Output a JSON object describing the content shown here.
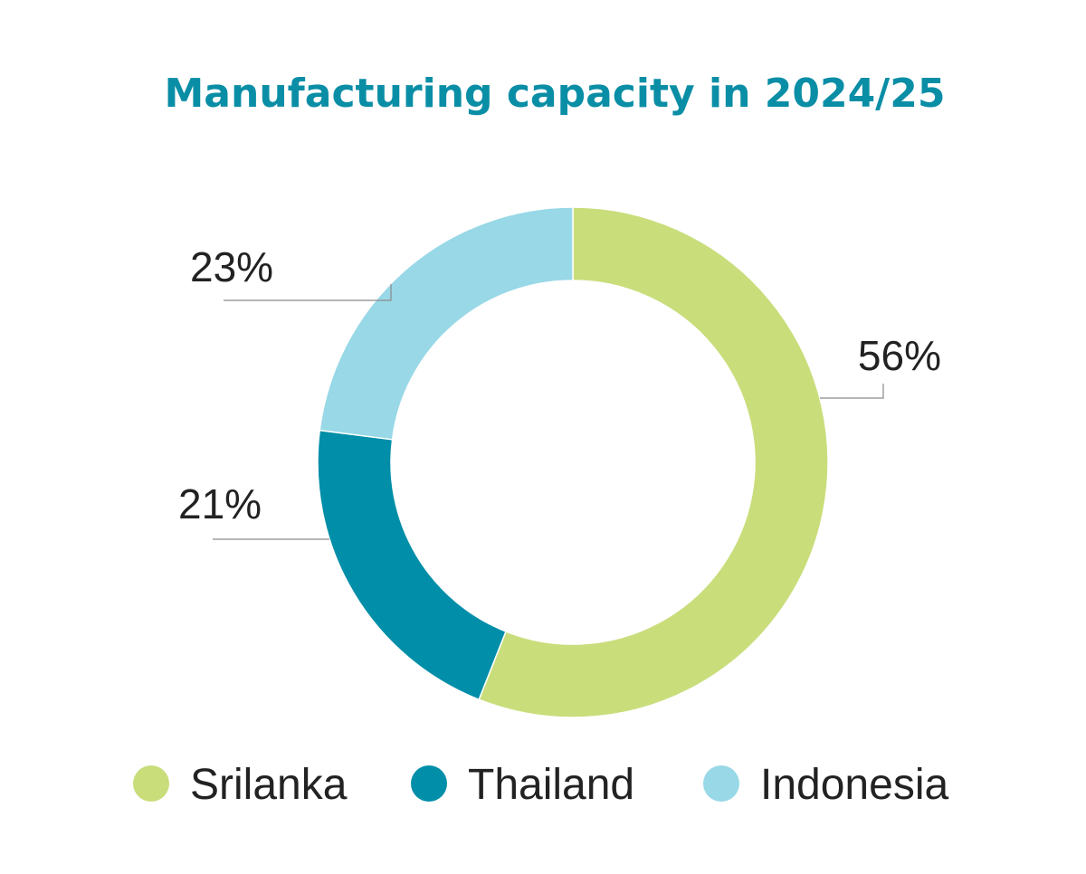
{
  "chart_data": {
    "type": "pie",
    "variant": "donut",
    "title": "Manufacturing capacity in 2024/25",
    "categories": [
      "Srilanka",
      "Thailand",
      "Indonesia"
    ],
    "values": [
      56,
      21,
      23
    ],
    "labels": [
      "56%",
      "21%",
      "23%"
    ],
    "unit": "%",
    "colors": [
      "#c9dd7b",
      "#008ea8",
      "#98d8e7"
    ],
    "legend_position": "bottom"
  }
}
